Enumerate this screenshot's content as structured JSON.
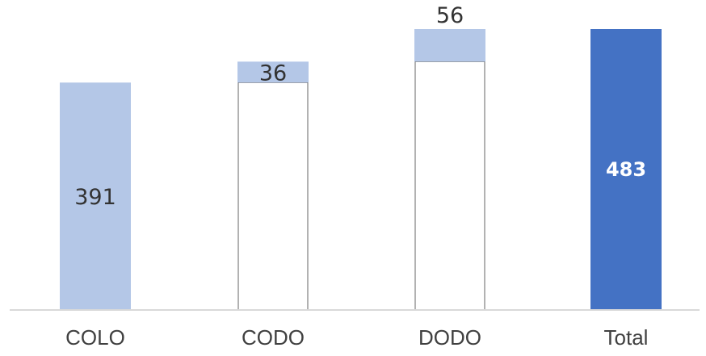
{
  "chart_data": {
    "type": "bar",
    "subtype": "waterfall",
    "categories": [
      "COLO",
      "CODO",
      "DODO",
      "Total"
    ],
    "values": [
      391,
      36,
      56,
      483
    ],
    "labels": [
      "391",
      "36",
      "56",
      "483"
    ],
    "kinds": [
      "delta",
      "delta",
      "delta",
      "total"
    ],
    "ylim": [
      0,
      483
    ],
    "title": "",
    "xlabel": "",
    "ylabel": "",
    "grid": false,
    "legend": "none",
    "colors": {
      "delta": "#b4c7e7",
      "total": "#4472c4",
      "connector_fill": "#ffffff",
      "connector_stroke": "#404040",
      "baseline": "#d9d9d9"
    }
  }
}
